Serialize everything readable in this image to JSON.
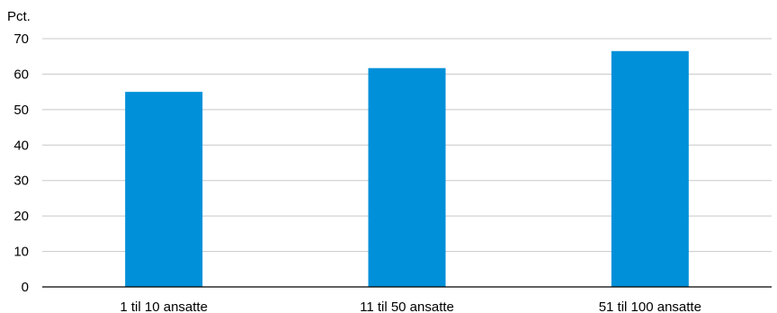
{
  "chart_data": {
    "type": "bar",
    "unit_label": "Pct.",
    "categories": [
      "1 til 10 ansatte",
      "11 til 50 ansatte",
      "51 til 100 ansatte"
    ],
    "values": [
      55,
      61.7,
      66.5
    ],
    "ylim": [
      0,
      70
    ],
    "yticks": [
      "0",
      "10",
      "20",
      "30",
      "40",
      "50",
      "60",
      "70"
    ],
    "grid": true,
    "bar_color": "#0090d9",
    "grid_color": "#c8c8c8"
  }
}
